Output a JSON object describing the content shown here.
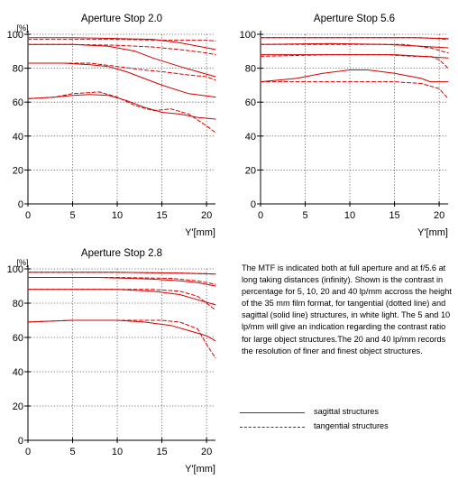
{
  "chart_data": [
    {
      "type": "line",
      "title": "Aperture Stop 2.0",
      "xlabel": "Y'[mm]",
      "ylabel": "[%]",
      "xlim": [
        0,
        21
      ],
      "ylim": [
        0,
        100
      ],
      "xticks": [
        0,
        5,
        10,
        15,
        20
      ],
      "yticks": [
        0,
        20,
        40,
        60,
        80,
        100
      ],
      "grid": true,
      "series": [
        {
          "style": "solid",
          "x": [
            0,
            5,
            10,
            14,
            17,
            20,
            21
          ],
          "y": [
            98,
            98,
            97.5,
            97,
            95,
            92,
            91
          ]
        },
        {
          "style": "dashed",
          "x": [
            0,
            5,
            10,
            15,
            20,
            21
          ],
          "y": [
            97,
            97,
            97,
            96.5,
            96.5,
            96
          ]
        },
        {
          "style": "solid",
          "x": [
            0,
            5,
            9,
            12,
            14,
            17,
            19,
            21
          ],
          "y": [
            94,
            94,
            93,
            90,
            86,
            81,
            78,
            75
          ]
        },
        {
          "style": "dashed",
          "x": [
            0,
            5,
            10,
            14,
            17,
            20,
            21
          ],
          "y": [
            94,
            94,
            93.5,
            92.5,
            91,
            89,
            88
          ]
        },
        {
          "style": "solid",
          "x": [
            0,
            4,
            7,
            9,
            11,
            13,
            15,
            18,
            21
          ],
          "y": [
            83,
            83,
            82,
            81,
            78,
            74,
            70,
            65,
            63
          ]
        },
        {
          "style": "dashed",
          "x": [
            0,
            4,
            7,
            10,
            13,
            15,
            18,
            20,
            21
          ],
          "y": [
            83,
            83,
            83,
            81,
            79,
            78,
            76,
            75,
            73
          ]
        },
        {
          "style": "solid",
          "x": [
            0,
            3,
            5,
            7,
            9,
            11,
            13,
            15,
            17,
            19,
            21
          ],
          "y": [
            62,
            63,
            64,
            64.5,
            64,
            61,
            57,
            54,
            53,
            51,
            50
          ]
        },
        {
          "style": "dashed",
          "x": [
            0,
            3,
            5,
            8,
            10,
            12,
            14,
            16,
            18,
            20,
            21
          ],
          "y": [
            62,
            63,
            65,
            66,
            63,
            58,
            55,
            56,
            53,
            46,
            42
          ]
        }
      ]
    },
    {
      "type": "line",
      "title": "Aperture Stop 5.6",
      "xlabel": "Y'[mm]",
      "ylabel": "",
      "xlim": [
        0,
        21
      ],
      "ylim": [
        0,
        100
      ],
      "xticks": [
        0,
        5,
        10,
        15,
        20
      ],
      "yticks": [
        0,
        20,
        40,
        60,
        80,
        100
      ],
      "grid": true,
      "series": [
        {
          "style": "solid",
          "x": [
            0,
            10,
            17,
            21
          ],
          "y": [
            98,
            98,
            98,
            97.5
          ]
        },
        {
          "style": "dashed",
          "x": [
            0,
            10,
            18,
            21
          ],
          "y": [
            98,
            98,
            98,
            97
          ]
        },
        {
          "style": "solid",
          "x": [
            0,
            8,
            14,
            18,
            21
          ],
          "y": [
            94,
            94.5,
            94,
            93,
            92
          ]
        },
        {
          "style": "dashed",
          "x": [
            0,
            10,
            16,
            19,
            21
          ],
          "y": [
            94,
            94,
            94,
            92,
            89
          ]
        },
        {
          "style": "solid",
          "x": [
            0,
            5,
            10,
            15,
            18,
            21
          ],
          "y": [
            88,
            88,
            88,
            88,
            87,
            86
          ]
        },
        {
          "style": "dashed",
          "x": [
            0,
            8,
            14,
            17,
            19,
            20,
            21
          ],
          "y": [
            87,
            88,
            88,
            87,
            87,
            85,
            80
          ]
        },
        {
          "style": "solid",
          "x": [
            0,
            4,
            7,
            10,
            12,
            15,
            18,
            19,
            21
          ],
          "y": [
            72,
            74,
            77,
            79,
            79,
            77,
            74,
            72,
            72
          ]
        },
        {
          "style": "dashed",
          "x": [
            0,
            5,
            10,
            15,
            18,
            20,
            21
          ],
          "y": [
            72,
            72,
            72,
            72,
            71,
            68,
            62
          ]
        }
      ]
    },
    {
      "type": "line",
      "title": "Aperture Stop 2.8",
      "xlabel": "Y'[mm]",
      "ylabel": "[%]",
      "xlim": [
        0,
        21
      ],
      "ylim": [
        0,
        100
      ],
      "xticks": [
        0,
        5,
        10,
        15,
        20
      ],
      "yticks": [
        0,
        20,
        40,
        60,
        80,
        100
      ],
      "grid": true,
      "series": [
        {
          "style": "solid",
          "x": [
            0,
            10,
            17,
            21
          ],
          "y": [
            98,
            98,
            97.5,
            97
          ]
        },
        {
          "style": "dashed",
          "x": [
            0,
            10,
            18,
            21
          ],
          "y": [
            98,
            98,
            97.5,
            97
          ]
        },
        {
          "style": "solid",
          "x": [
            0,
            8,
            14,
            17,
            19,
            21
          ],
          "y": [
            95,
            95,
            94,
            93,
            92,
            90
          ]
        },
        {
          "style": "dashed",
          "x": [
            0,
            10,
            16,
            19,
            21
          ],
          "y": [
            95,
            95,
            94.5,
            93,
            91
          ]
        },
        {
          "style": "solid",
          "x": [
            0,
            5,
            10,
            14,
            17,
            19,
            21
          ],
          "y": [
            88,
            88,
            88,
            87,
            85,
            82,
            79
          ]
        },
        {
          "style": "dashed",
          "x": [
            0,
            8,
            14,
            17,
            19,
            20,
            21
          ],
          "y": [
            88,
            88,
            88,
            87,
            84,
            80,
            76
          ]
        },
        {
          "style": "solid",
          "x": [
            0,
            5,
            10,
            13,
            16,
            18,
            20,
            21
          ],
          "y": [
            69,
            70,
            70,
            69,
            67,
            64,
            61,
            58
          ]
        },
        {
          "style": "dashed",
          "x": [
            0,
            5,
            10,
            15,
            17,
            19,
            20,
            21
          ],
          "y": [
            69,
            70,
            70,
            70,
            69,
            65,
            56,
            48
          ]
        }
      ]
    }
  ],
  "colors": {
    "curve": "#d40000",
    "grid": "#555555",
    "axis": "#000000"
  },
  "description": "The MTF is indicated both at full aperture and at f/5.6 at long taking distances (infinity). Shown is the contrast in percentage for 5, 10, 20 and 40 lp/mm accross the height of the 35 mm film format, for tangential (dotted line) and sagittal (solid line) structures, in white light. The 5 and 10 lp/mm will give an indication regarding the contrast ratio for large object structures.The 20 and 40 lp/mm records the resolution of finer and finest object structures.",
  "legend": {
    "sagittal": "sagittal structures",
    "tangential": "tangential structures"
  }
}
